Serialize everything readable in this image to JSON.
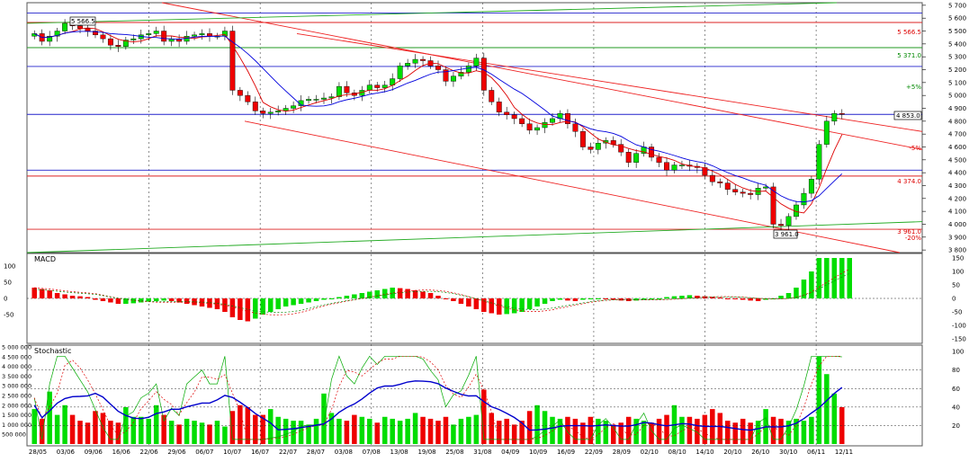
{
  "colors": {
    "up": "#00dd00",
    "down": "#ee0000",
    "ma_fast": "#dd0000",
    "ma_slow": "#0000dd",
    "hline_blue": "#2222cc",
    "hline_red": "#dd2222",
    "hline_green": "#229922",
    "trend_red": "#ee2222",
    "trend_green": "#22aa22",
    "grid": "#333333",
    "text_red": "#dd0000",
    "text_green": "#008800"
  },
  "price_panel": {
    "y_ticks": [
      "5 700",
      "5 600",
      "5 500",
      "5 400",
      "5 300",
      "5 200",
      "5 100",
      "5 000",
      "4 900",
      "4 800",
      "4 700",
      "4 600",
      "4 500",
      "4 400",
      "4 300",
      "4 200",
      "4 100",
      "4 000",
      "3 900",
      "3 800"
    ],
    "annotations": {
      "top_left_box": "5 566.5",
      "right_red_1": "5 566.5",
      "right_green_1": "5 371.0",
      "right_pct_plus": "+5%",
      "right_last_box": "4 853.0",
      "right_pct_minus": "-5%",
      "right_red_2": "4 374.0",
      "bottom_box": "3 961.0",
      "right_red_3": "3 961.0",
      "right_pct_minus20": "-20%"
    }
  },
  "macd_panel": {
    "title": "MACD",
    "y_ticks_left": [
      "100",
      "50",
      "0",
      "-50"
    ],
    "y_ticks_right": [
      "150",
      "100",
      "50",
      "0",
      "-50",
      "-100",
      "-150"
    ]
  },
  "stoch_panel": {
    "title": "Stochastic",
    "y_ticks_left": [
      "5 000 000",
      "4 500 000",
      "4 000 000",
      "3 500 000",
      "3 000 000",
      "2 500 000",
      "2 000 000",
      "1 500 000",
      "1 000 000",
      "500 000"
    ],
    "y_ticks_right": [
      "100",
      "80",
      "60",
      "40",
      "20"
    ]
  },
  "x_labels": [
    "28/05",
    "03/06",
    "09/06",
    "16/06",
    "22/06",
    "29/06",
    "06/07",
    "10/07",
    "16/07",
    "22/07",
    "28/07",
    "03/08",
    "07/08",
    "13/08",
    "19/08",
    "25/08",
    "31/08",
    "04/09",
    "10/09",
    "16/09",
    "22/09",
    "28/09",
    "02/10",
    "08/10",
    "14/10",
    "20/10",
    "26/10",
    "30/10",
    "06/11",
    "12/11"
  ],
  "chart_data": {
    "type": "candlestick",
    "series_close": [
      5480,
      5420,
      5460,
      5500,
      5560,
      5540,
      5520,
      5500,
      5470,
      5440,
      5390,
      5380,
      5430,
      5440,
      5470,
      5480,
      5500,
      5420,
      5440,
      5420,
      5460,
      5470,
      5480,
      5460,
      5460,
      5500,
      5040,
      5000,
      4950,
      4880,
      4860,
      4870,
      4880,
      4900,
      4920,
      4960,
      4970,
      4970,
      4980,
      4990,
      5070,
      5020,
      5000,
      5040,
      5080,
      5060,
      5080,
      5130,
      5230,
      5250,
      5280,
      5270,
      5230,
      5200,
      5110,
      5150,
      5180,
      5230,
      5290,
      5040,
      4950,
      4870,
      4850,
      4820,
      4780,
      4730,
      4750,
      4790,
      4820,
      4860,
      4780,
      4720,
      4600,
      4580,
      4630,
      4650,
      4620,
      4560,
      4480,
      4550,
      4600,
      4520,
      4480,
      4420,
      4460,
      4460,
      4450,
      4440,
      4380,
      4330,
      4320,
      4270,
      4250,
      4240,
      4230,
      4280,
      4290,
      4000,
      3990,
      4060,
      4150,
      4240,
      4350,
      4620,
      4800,
      4860,
      4853
    ],
    "volume_millions": [
      1.8,
      1.3,
      2.7,
      1.5,
      2.0,
      1.5,
      1.2,
      1.1,
      1.7,
      1.6,
      1.2,
      1.1,
      1.9,
      1.4,
      1.4,
      1.3,
      2.0,
      1.5,
      1.2,
      1.0,
      1.3,
      1.2,
      1.1,
      1.0,
      1.2,
      0.9,
      1.7,
      2.0,
      1.9,
      1.5,
      1.5,
      1.8,
      1.4,
      1.3,
      1.2,
      1.2,
      1.0,
      1.3,
      2.6,
      1.6,
      1.3,
      1.2,
      1.5,
      1.4,
      1.3,
      1.1,
      1.4,
      1.3,
      1.2,
      1.3,
      1.6,
      1.4,
      1.3,
      1.2,
      1.4,
      1.0,
      1.3,
      1.4,
      1.5,
      2.8,
      1.6,
      1.2,
      1.3,
      1.0,
      1.2,
      1.7,
      2.0,
      1.7,
      1.4,
      1.3,
      1.4,
      1.3,
      1.1,
      1.4,
      1.3,
      1.2,
      1.0,
      1.1,
      1.4,
      1.3,
      1.2,
      1.1,
      1.3,
      1.5,
      2.0,
      1.4,
      1.4,
      1.3,
      1.5,
      1.8,
      1.6,
      1.2,
      1.1,
      1.3,
      1.1,
      1.2,
      1.8,
      1.4,
      1.3,
      1.2,
      1.3,
      1.2,
      1.4,
      4.5,
      3.6,
      2.6,
      1.9
    ],
    "macd_hist": [
      40,
      35,
      30,
      20,
      15,
      10,
      8,
      5,
      -5,
      -10,
      -15,
      -20,
      -20,
      -18,
      -15,
      -12,
      -10,
      -8,
      -10,
      -15,
      -20,
      -25,
      -30,
      -35,
      -40,
      -50,
      -70,
      -80,
      -85,
      -75,
      -60,
      -50,
      -40,
      -30,
      -25,
      -20,
      -15,
      -10,
      -5,
      0,
      5,
      10,
      15,
      20,
      25,
      30,
      35,
      40,
      38,
      35,
      30,
      25,
      20,
      10,
      0,
      -10,
      -20,
      -30,
      -40,
      -50,
      -55,
      -60,
      -58,
      -55,
      -50,
      -40,
      -30,
      -20,
      -10,
      -5,
      -8,
      -10,
      -5,
      -3,
      -2,
      -3,
      -5,
      -8,
      -10,
      -8,
      -5,
      -3,
      0,
      5,
      8,
      10,
      12,
      10,
      8,
      5,
      3,
      0,
      -2,
      -5,
      -8,
      -10,
      -5,
      0,
      10,
      20,
      40,
      70,
      100,
      150,
      150,
      150,
      150,
      150
    ],
    "x_tick_labels": [
      "28/05",
      "03/06",
      "09/06",
      "16/06",
      "22/06",
      "29/06",
      "06/07",
      "10/07",
      "16/07",
      "22/07",
      "28/07",
      "03/08",
      "07/08",
      "13/08",
      "19/08",
      "25/08",
      "31/08",
      "04/09",
      "10/09",
      "16/09",
      "22/09",
      "28/09",
      "02/10",
      "08/10",
      "14/10",
      "20/10",
      "26/10",
      "30/10",
      "06/11",
      "12/11"
    ],
    "price_ylim": [
      3780,
      5720
    ],
    "macd_ylim": [
      -160,
      160
    ],
    "stoch_ylim": [
      0,
      105
    ],
    "volume_ylim": [
      0,
      5000000
    ],
    "horizontal_levels": [
      {
        "value": 5640,
        "color": "blue"
      },
      {
        "value": 5566.5,
        "color": "red"
      },
      {
        "value": 5371,
        "color": "green"
      },
      {
        "value": 5225,
        "color": "blue"
      },
      {
        "value": 4853,
        "color": "blue"
      },
      {
        "value": 4420,
        "color": "blue"
      },
      {
        "value": 4374,
        "color": "red"
      },
      {
        "value": 3961,
        "color": "red"
      }
    ],
    "grid": true
  }
}
